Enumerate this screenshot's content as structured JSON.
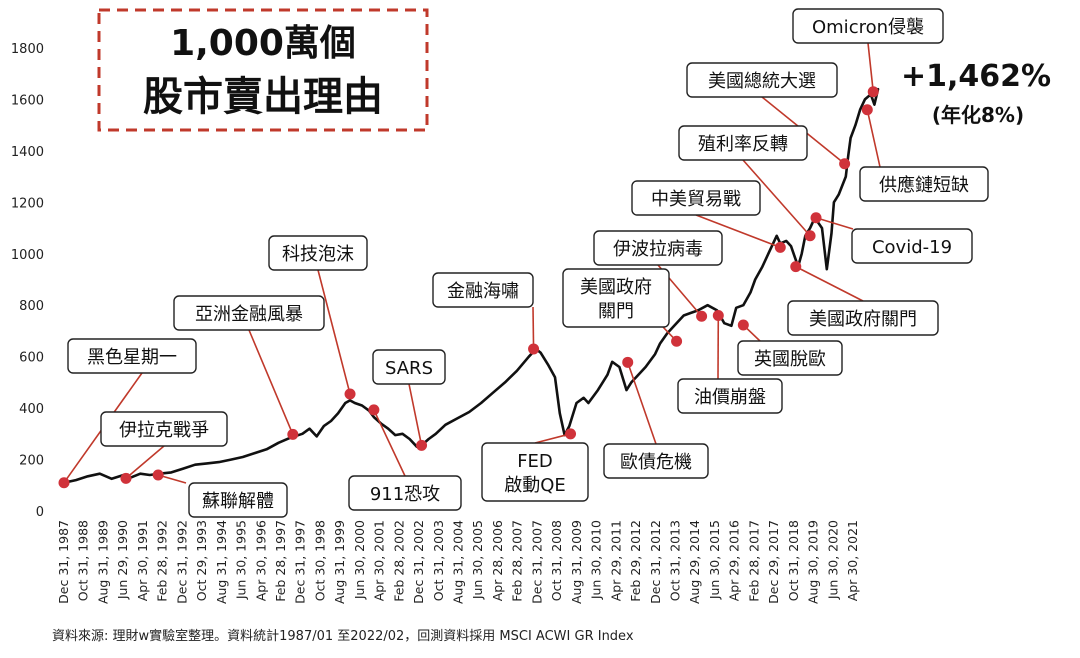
{
  "chart_data": {
    "type": "line",
    "title": "1,000萬個",
    "subtitle": "股市賣出理由",
    "gain_label": "+1,462%",
    "annualized_label": "(年化8%)",
    "source_note": "資料來源: 理財w實驗室整理。資料統計1987/01 至2022/02，回測資料採用 MSCI ACWI GR Index",
    "ylim": [
      0,
      1800
    ],
    "yticks": [
      0,
      200,
      400,
      600,
      800,
      1000,
      1200,
      1400,
      1600,
      1800
    ],
    "xlim": [
      1988.0,
      2022.15
    ],
    "xtick_labels": [
      "Dec 31, 1987",
      "Oct 31, 1988",
      "Aug 31, 1989",
      "Jun 29, 1990",
      "Apr 30, 1991",
      "Feb 28, 1992",
      "Dec 31, 1992",
      "Oct 29, 1993",
      "Aug 31, 1994",
      "Jun 30, 1995",
      "Apr 30, 1996",
      "Feb 28, 1997",
      "Dec 31, 1997",
      "Oct 30, 1998",
      "Aug 31, 1999",
      "Jun 30, 2000",
      "Apr 30, 2001",
      "Feb 28, 2002",
      "Dec 31, 2002",
      "Oct 31, 2003",
      "Aug 31, 2004",
      "Jun 30, 2005",
      "Apr 28, 2006",
      "Feb 28, 2007",
      "Dec 31, 2007",
      "Oct 31, 2008",
      "Aug 31, 2009",
      "Jun 30, 2010",
      "Apr 29, 2011",
      "Feb 29, 2012",
      "Dec 31, 2012",
      "Oct 31, 2013",
      "Aug 29, 2014",
      "Jun 30, 2015",
      "Apr 29, 2016",
      "Feb 28, 2017",
      "Dec 29, 2017",
      "Oct 31, 2018",
      "Aug 30, 2019",
      "Jun 30, 2020",
      "Apr 30, 2021"
    ],
    "series": [
      {
        "line_color": "#111111",
        "x": [
          1988.0,
          1988.5,
          1989.0,
          1989.5,
          1990.0,
          1990.5,
          1990.8,
          1991.2,
          1991.6,
          1992.0,
          1992.5,
          1993.0,
          1993.5,
          1994.0,
          1994.5,
          1995.0,
          1995.5,
          1996.0,
          1996.5,
          1997.0,
          1997.5,
          1998.0,
          1998.3,
          1998.6,
          1998.9,
          1999.2,
          1999.5,
          1999.8,
          2000.0,
          2000.2,
          2000.5,
          2000.8,
          2001.0,
          2001.3,
          2001.6,
          2001.9,
          2002.2,
          2002.5,
          2002.8,
          2003.0,
          2003.3,
          2003.6,
          2004.0,
          2004.5,
          2005.0,
          2005.5,
          2006.0,
          2006.5,
          2007.0,
          2007.5,
          2007.8,
          2008.0,
          2008.3,
          2008.6,
          2008.8,
          2009.0,
          2009.2,
          2009.5,
          2009.8,
          2010.0,
          2010.4,
          2010.8,
          2011.0,
          2011.3,
          2011.6,
          2011.8,
          2012.0,
          2012.4,
          2012.8,
          2013.0,
          2013.3,
          2013.6,
          2014.0,
          2014.3,
          2014.6,
          2015.0,
          2015.4,
          2015.7,
          2016.0,
          2016.2,
          2016.5,
          2016.8,
          2017.0,
          2017.3,
          2017.6,
          2017.9,
          2018.05,
          2018.3,
          2018.5,
          2018.8,
          2018.95,
          2019.1,
          2019.3,
          2019.5,
          2019.8,
          2020.0,
          2020.2,
          2020.3,
          2020.5,
          2020.8,
          2020.9,
          2021.0,
          2021.2,
          2021.4,
          2021.6,
          2021.85,
          2022.0,
          2022.15
        ],
        "y": [
          110,
          120,
          135,
          145,
          125,
          140,
          130,
          145,
          140,
          145,
          150,
          165,
          180,
          185,
          190,
          200,
          210,
          225,
          240,
          265,
          285,
          300,
          320,
          290,
          330,
          350,
          380,
          420,
          430,
          420,
          410,
          390,
          365,
          340,
          320,
          295,
          300,
          280,
          250,
          255,
          280,
          300,
          335,
          360,
          385,
          420,
          460,
          500,
          545,
          600,
          630,
          615,
          570,
          520,
          380,
          295,
          330,
          420,
          440,
          420,
          470,
          530,
          580,
          560,
          470,
          500,
          520,
          560,
          610,
          650,
          690,
          720,
          760,
          770,
          780,
          800,
          780,
          730,
          720,
          790,
          800,
          850,
          900,
          950,
          1010,
          1070,
          1040,
          1050,
          1030,
          950,
          1000,
          1070,
          1100,
          1140,
          1100,
          940,
          1080,
          1200,
          1230,
          1300,
          1380,
          1450,
          1500,
          1560,
          1600,
          1620,
          1580,
          1640
        ]
      }
    ],
    "events": [
      {
        "label": "黑色星期一",
        "x": 1988.0,
        "y": 110
      },
      {
        "label": "伊拉克戰爭",
        "x": 1990.6,
        "y": 127
      },
      {
        "label": "蘇聯解體",
        "x": 1991.95,
        "y": 140
      },
      {
        "label": "亞洲金融風暴",
        "x": 1997.6,
        "y": 298
      },
      {
        "label": "科技泡沫",
        "x": 2000.0,
        "y": 455
      },
      {
        "label": "911恐攻",
        "x": 2001.0,
        "y": 393
      },
      {
        "label": "SARS",
        "x": 2003.0,
        "y": 255
      },
      {
        "label": "金融海嘯",
        "x": 2007.7,
        "y": 630
      },
      {
        "label": "FED 啟動QE",
        "x": 2009.25,
        "y": 300
      },
      {
        "label": "歐債危機",
        "x": 2011.65,
        "y": 578
      },
      {
        "label": "美國政府 關門",
        "x": 2013.7,
        "y": 660
      },
      {
        "label": "伊波拉病毒",
        "x": 2014.75,
        "y": 757
      },
      {
        "label": "油價崩盤",
        "x": 2015.45,
        "y": 760
      },
      {
        "label": "英國脫歐",
        "x": 2016.5,
        "y": 723
      },
      {
        "label": "中美貿易戰",
        "x": 2018.05,
        "y": 1025
      },
      {
        "label": "美國政府關門",
        "x": 2018.7,
        "y": 950
      },
      {
        "label": "殖利率反轉",
        "x": 2019.3,
        "y": 1070
      },
      {
        "label": "Covid-19",
        "x": 2019.55,
        "y": 1140
      },
      {
        "label": "美國總統大選",
        "x": 2020.75,
        "y": 1350
      },
      {
        "label": "供應鏈短缺",
        "x": 2021.7,
        "y": 1560
      },
      {
        "label": "Omicron侵襲",
        "x": 2021.95,
        "y": 1630
      }
    ]
  }
}
